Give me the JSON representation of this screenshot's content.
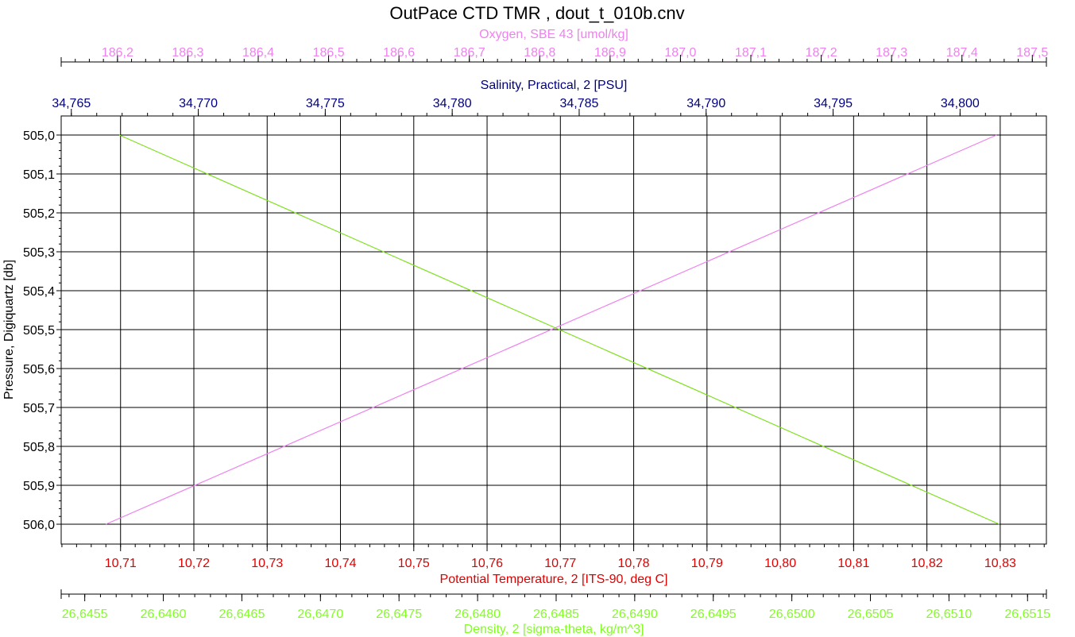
{
  "chart_data": {
    "type": "line",
    "title": "OutPace CTD TMR , dout_t_010b.cnv",
    "y_axis": {
      "label": "Pressure, Digiquartz [db]",
      "range": [
        505.0,
        506.0
      ],
      "ticks": [
        "505,0",
        "505,1",
        "505,2",
        "505,3",
        "505,4",
        "505,5",
        "505,6",
        "505,7",
        "505,8",
        "505,9",
        "506,0"
      ],
      "inverted": true
    },
    "top_axes": [
      {
        "key": "oxygen",
        "label": "Oxygen, SBE 43 [umol/kg]",
        "color": "#ee82ee",
        "range": [
          186.12,
          187.52
        ],
        "ticks": [
          "186,2",
          "186,3",
          "186,4",
          "186,5",
          "186,6",
          "186,7",
          "186,8",
          "186,9",
          "187,0",
          "187,1",
          "187,2",
          "187,3",
          "187,4",
          "187,5"
        ],
        "tick_values": [
          186.2,
          186.3,
          186.4,
          186.5,
          186.6,
          186.7,
          186.8,
          186.9,
          187.0,
          187.1,
          187.2,
          187.3,
          187.4,
          187.5
        ],
        "minor_step": 0.02
      },
      {
        "key": "salinity",
        "label": "Salinity, Practical, 2 [PSU]",
        "color": "#000080",
        "range": [
          34.7646,
          34.8034
        ],
        "ticks": [
          "34,765",
          "34,770",
          "34,775",
          "34,780",
          "34,785",
          "34,790",
          "34,795",
          "34,800"
        ],
        "tick_values": [
          34.765,
          34.77,
          34.775,
          34.78,
          34.785,
          34.79,
          34.795,
          34.8
        ],
        "minor_step": 0.001
      }
    ],
    "bottom_axes": [
      {
        "key": "temperature",
        "label": "Potential Temperature, 2 [ITS-90, deg C]",
        "color": "#e00000",
        "range": [
          10.7019,
          10.8363
        ],
        "ticks": [
          "10,71",
          "10,72",
          "10,73",
          "10,74",
          "10,75",
          "10,76",
          "10,77",
          "10,78",
          "10,79",
          "10,80",
          "10,81",
          "10,82",
          "10,83"
        ],
        "tick_values": [
          10.71,
          10.72,
          10.73,
          10.74,
          10.75,
          10.76,
          10.77,
          10.78,
          10.79,
          10.8,
          10.81,
          10.82,
          10.83
        ],
        "minor_step": 0.002,
        "vertical_grid": true
      },
      {
        "key": "density",
        "label": "Density, 2 [sigma-theta, kg/m^3]",
        "color": "#80ff20",
        "range": [
          26.64535,
          26.65162
        ],
        "ticks": [
          "26,6455",
          "26,6460",
          "26,6465",
          "26,6470",
          "26,6475",
          "26,6480",
          "26,6485",
          "26,6490",
          "26,6495",
          "26,6500",
          "26,6505",
          "26,6510",
          "26,6515"
        ],
        "tick_values": [
          26.6455,
          26.646,
          26.6465,
          26.647,
          26.6475,
          26.648,
          26.6485,
          26.649,
          26.6495,
          26.65,
          26.6505,
          26.651,
          26.6515
        ],
        "minor_step": 0.0001
      }
    ],
    "series": [
      {
        "axis": "temperature",
        "color": "#ee82ee",
        "x": [
          10.708,
          10.8295
        ],
        "pressure": [
          506.0,
          505.0
        ]
      },
      {
        "axis": "density",
        "color": "#80e020",
        "x": [
          26.64572,
          26.65132
        ],
        "pressure": [
          505.0,
          506.0
        ]
      }
    ],
    "grid": true
  }
}
